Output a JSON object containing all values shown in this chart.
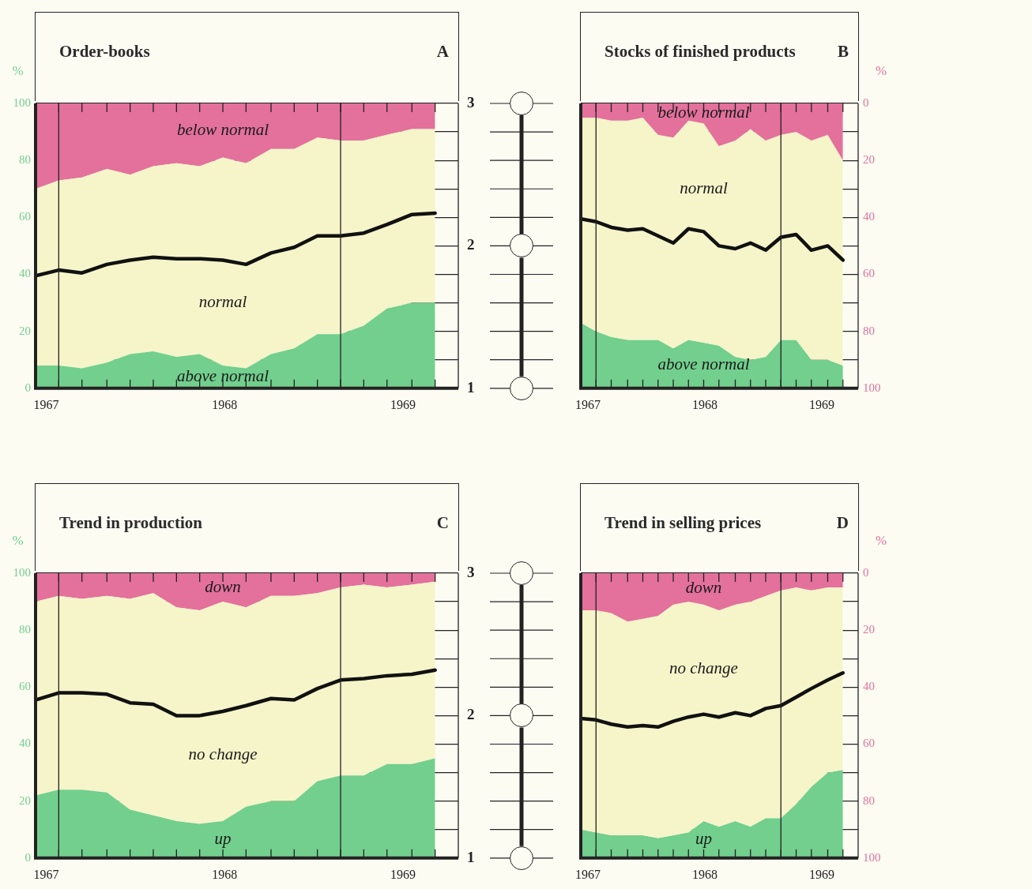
{
  "chart_data": [
    {
      "type": "area",
      "title": "Order-books",
      "annotations": [
        "A"
      ],
      "ylabel": "%",
      "stacked": true,
      "grid": "y",
      "marker": "none",
      "x": [
        1966.94,
        1967.07,
        1967.2,
        1967.34,
        1967.47,
        1967.6,
        1967.73,
        1967.86,
        1967.99,
        1968.12,
        1968.26,
        1968.39,
        1968.52,
        1968.65,
        1968.78,
        1968.91,
        1969.05,
        1969.18
      ],
      "xlim": [
        1966.94,
        1969.31
      ],
      "xticks": [
        1967,
        1968,
        1969,
        {
          "value": 1967.07,
          "label": null
        },
        {
          "value": 1967.2,
          "label": null
        },
        {
          "value": 1967.34,
          "label": null
        },
        {
          "value": 1967.47,
          "label": null
        },
        {
          "value": 1967.6,
          "label": null
        },
        {
          "value": 1967.73,
          "label": null
        },
        {
          "value": 1967.86,
          "label": null
        },
        {
          "value": 1967.99,
          "label": null
        },
        {
          "value": 1968.12,
          "label": null
        },
        {
          "value": 1968.26,
          "label": null
        },
        {
          "value": 1968.39,
          "label": null
        },
        {
          "value": 1968.52,
          "label": null
        },
        {
          "value": 1968.65,
          "label": null
        },
        {
          "value": 1968.78,
          "label": null
        },
        {
          "value": 1968.91,
          "label": null
        },
        {
          "value": 1969.05,
          "label": null
        },
        {
          "value": 1969.18,
          "label": null
        }
      ],
      "ylim": [
        0,
        100
      ],
      "yticks": [
        0,
        {
          "value": 10,
          "label": null
        },
        20,
        {
          "value": 30,
          "label": null
        },
        40,
        {
          "value": 50,
          "label": null
        },
        60,
        {
          "value": 70,
          "label": null
        },
        80,
        {
          "value": 90,
          "label": null
        },
        100
      ],
      "y2lim": [
        1,
        3
      ],
      "y2ticks": [
        1,
        {
          "value": 1.2,
          "label": null
        },
        {
          "value": 1.4,
          "label": null
        },
        {
          "value": 1.6,
          "label": null
        },
        {
          "value": 1.8,
          "label": null
        },
        2,
        {
          "value": 2.2,
          "label": null
        },
        {
          "value": 2.4,
          "label": null
        },
        {
          "value": 2.6,
          "label": null
        },
        {
          "value": 2.8,
          "label": null
        },
        3
      ],
      "ref_lines": [
        {
          "axis": "x",
          "value": 1967.07
        },
        {
          "axis": "x",
          "value": 1968.65
        }
      ],
      "series": [
        {
          "name": "above normal",
          "color": "#72cf8d",
          "values": [
            8,
            8,
            7,
            9,
            12,
            13,
            11,
            12,
            8,
            7,
            12,
            14,
            19,
            19,
            22,
            28,
            30,
            30
          ]
        },
        {
          "name": "normal",
          "color": "#f6f4c9",
          "values": [
            62,
            65,
            67,
            68,
            63,
            65,
            68,
            66,
            73,
            72,
            72,
            70,
            69,
            68,
            65,
            61,
            61,
            61
          ]
        },
        {
          "name": "below normal",
          "color": "#e3719b",
          "values": [
            30,
            27,
            26,
            23,
            25,
            22,
            21,
            22,
            19,
            21,
            16,
            16,
            12,
            13,
            13,
            11,
            9,
            9
          ]
        },
        {
          "type": "line",
          "axis": "y2",
          "color": "#111111",
          "values": [
            1.79,
            1.83,
            1.81,
            1.87,
            1.9,
            1.92,
            1.91,
            1.91,
            1.9,
            1.87,
            1.95,
            1.99,
            2.07,
            2.07,
            2.09,
            2.15,
            2.22,
            2.23
          ]
        }
      ]
    },
    {
      "type": "area",
      "title": "Stocks of finished products",
      "annotations": [
        "B"
      ],
      "ylabel": "%",
      "stacked": true,
      "grid": "y",
      "marker": "none",
      "x": [
        1966.94,
        1967.07,
        1967.2,
        1967.34,
        1967.47,
        1967.6,
        1967.73,
        1967.86,
        1967.99,
        1968.12,
        1968.26,
        1968.39,
        1968.52,
        1968.65,
        1968.78,
        1968.91,
        1969.05,
        1969.18
      ],
      "xlim": [
        1966.94,
        1969.31
      ],
      "xticks": [
        1967,
        1968,
        1969,
        {
          "value": 1967.07,
          "label": null
        },
        {
          "value": 1967.2,
          "label": null
        },
        {
          "value": 1967.34,
          "label": null
        },
        {
          "value": 1967.47,
          "label": null
        },
        {
          "value": 1967.6,
          "label": null
        },
        {
          "value": 1967.73,
          "label": null
        },
        {
          "value": 1967.86,
          "label": null
        },
        {
          "value": 1967.99,
          "label": null
        },
        {
          "value": 1968.12,
          "label": null
        },
        {
          "value": 1968.26,
          "label": null
        },
        {
          "value": 1968.39,
          "label": null
        },
        {
          "value": 1968.52,
          "label": null
        },
        {
          "value": 1968.65,
          "label": null
        },
        {
          "value": 1968.78,
          "label": null
        },
        {
          "value": 1968.91,
          "label": null
        },
        {
          "value": 1969.05,
          "label": null
        },
        {
          "value": 1969.18,
          "label": null
        }
      ],
      "ylim": [
        100,
        0
      ],
      "yticks": [
        0,
        {
          "value": 10,
          "label": null
        },
        20,
        {
          "value": 30,
          "label": null
        },
        40,
        {
          "value": 50,
          "label": null
        },
        60,
        {
          "value": 70,
          "label": null
        },
        80,
        {
          "value": 90,
          "label": null
        },
        100
      ],
      "y2lim": [
        1,
        3
      ],
      "ref_lines": [
        {
          "axis": "x",
          "value": 1967.07
        },
        {
          "axis": "x",
          "value": 1968.65
        }
      ],
      "series": [
        {
          "name": "below normal",
          "color": "#e3719b",
          "values": [
            5,
            5,
            6,
            6,
            5,
            11,
            12,
            6,
            7,
            15,
            13,
            9,
            13,
            11,
            10,
            13,
            11,
            20
          ]
        },
        {
          "name": "normal",
          "color": "#f6f4c9",
          "values": [
            72,
            75,
            76,
            77,
            78,
            72,
            74,
            77,
            77,
            70,
            76,
            81,
            76,
            72,
            73,
            77,
            79,
            72
          ]
        },
        {
          "name": "above normal",
          "color": "#72cf8d",
          "values": [
            23,
            20,
            18,
            17,
            17,
            17,
            14,
            17,
            16,
            15,
            11,
            10,
            11,
            17,
            17,
            10,
            10,
            8
          ]
        },
        {
          "type": "line",
          "axis": "y2",
          "color": "#111111",
          "values": [
            2.19,
            2.17,
            2.13,
            2.11,
            2.12,
            2.07,
            2.02,
            2.12,
            2.1,
            2.0,
            1.98,
            2.02,
            1.97,
            2.06,
            2.08,
            1.97,
            2.0,
            1.9
          ]
        }
      ]
    },
    {
      "type": "area",
      "title": "Trend in production",
      "annotations": [
        "C"
      ],
      "ylabel": "%",
      "stacked": true,
      "grid": "y",
      "marker": "none",
      "x": [
        1966.94,
        1967.07,
        1967.2,
        1967.34,
        1967.47,
        1967.6,
        1967.73,
        1967.86,
        1967.99,
        1968.12,
        1968.26,
        1968.39,
        1968.52,
        1968.65,
        1968.78,
        1968.91,
        1969.05,
        1969.18
      ],
      "xlim": [
        1966.94,
        1969.31
      ],
      "xticks": [
        1967,
        1968,
        1969,
        {
          "value": 1967.07,
          "label": null
        },
        {
          "value": 1967.2,
          "label": null
        },
        {
          "value": 1967.34,
          "label": null
        },
        {
          "value": 1967.47,
          "label": null
        },
        {
          "value": 1967.6,
          "label": null
        },
        {
          "value": 1967.73,
          "label": null
        },
        {
          "value": 1967.86,
          "label": null
        },
        {
          "value": 1967.99,
          "label": null
        },
        {
          "value": 1968.12,
          "label": null
        },
        {
          "value": 1968.26,
          "label": null
        },
        {
          "value": 1968.39,
          "label": null
        },
        {
          "value": 1968.52,
          "label": null
        },
        {
          "value": 1968.65,
          "label": null
        },
        {
          "value": 1968.78,
          "label": null
        },
        {
          "value": 1968.91,
          "label": null
        },
        {
          "value": 1969.05,
          "label": null
        },
        {
          "value": 1969.18,
          "label": null
        }
      ],
      "ylim": [
        0,
        100
      ],
      "yticks": [
        0,
        {
          "value": 10,
          "label": null
        },
        20,
        {
          "value": 30,
          "label": null
        },
        40,
        {
          "value": 50,
          "label": null
        },
        60,
        {
          "value": 70,
          "label": null
        },
        80,
        {
          "value": 90,
          "label": null
        },
        100
      ],
      "y2lim": [
        1,
        3
      ],
      "y2ticks": [
        1,
        {
          "value": 1.2,
          "label": null
        },
        {
          "value": 1.4,
          "label": null
        },
        {
          "value": 1.6,
          "label": null
        },
        {
          "value": 1.8,
          "label": null
        },
        2,
        {
          "value": 2.2,
          "label": null
        },
        {
          "value": 2.4,
          "label": null
        },
        {
          "value": 2.6,
          "label": null
        },
        {
          "value": 2.8,
          "label": null
        },
        3
      ],
      "ref_lines": [
        {
          "axis": "x",
          "value": 1967.07
        },
        {
          "axis": "x",
          "value": 1968.65
        }
      ],
      "series": [
        {
          "name": "up",
          "color": "#72cf8d",
          "values": [
            22,
            24,
            24,
            23,
            17,
            15,
            13,
            12,
            13,
            18,
            20,
            20,
            27,
            29,
            29,
            33,
            33,
            35
          ]
        },
        {
          "name": "no change",
          "color": "#f6f4c9",
          "values": [
            68,
            68,
            67,
            69,
            74,
            78,
            75,
            75,
            77,
            70,
            72,
            72,
            66,
            66,
            67,
            62,
            63,
            62
          ]
        },
        {
          "name": "down",
          "color": "#e3719b",
          "values": [
            10,
            8,
            9,
            8,
            9,
            7,
            12,
            13,
            10,
            12,
            8,
            8,
            7,
            5,
            4,
            5,
            4,
            3
          ]
        },
        {
          "type": "line",
          "axis": "y2",
          "color": "#111111",
          "values": [
            2.11,
            2.16,
            2.16,
            2.15,
            2.09,
            2.08,
            2.0,
            2.0,
            2.03,
            2.07,
            2.12,
            2.11,
            2.19,
            2.25,
            2.26,
            2.28,
            2.29,
            2.32
          ]
        }
      ]
    },
    {
      "type": "area",
      "title": "Trend in selling prices",
      "annotations": [
        "D"
      ],
      "ylabel": "%",
      "stacked": true,
      "grid": "y",
      "marker": "none",
      "x": [
        1966.94,
        1967.07,
        1967.2,
        1967.34,
        1967.47,
        1967.6,
        1967.73,
        1967.86,
        1967.99,
        1968.12,
        1968.26,
        1968.39,
        1968.52,
        1968.65,
        1968.78,
        1968.91,
        1969.05,
        1969.18
      ],
      "xlim": [
        1966.94,
        1969.31
      ],
      "xticks": [
        1967,
        1968,
        1969,
        {
          "value": 1967.07,
          "label": null
        },
        {
          "value": 1967.2,
          "label": null
        },
        {
          "value": 1967.34,
          "label": null
        },
        {
          "value": 1967.47,
          "label": null
        },
        {
          "value": 1967.6,
          "label": null
        },
        {
          "value": 1967.73,
          "label": null
        },
        {
          "value": 1967.86,
          "label": null
        },
        {
          "value": 1967.99,
          "label": null
        },
        {
          "value": 1968.12,
          "label": null
        },
        {
          "value": 1968.26,
          "label": null
        },
        {
          "value": 1968.39,
          "label": null
        },
        {
          "value": 1968.52,
          "label": null
        },
        {
          "value": 1968.65,
          "label": null
        },
        {
          "value": 1968.78,
          "label": null
        },
        {
          "value": 1968.91,
          "label": null
        },
        {
          "value": 1969.05,
          "label": null
        },
        {
          "value": 1969.18,
          "label": null
        }
      ],
      "ylim": [
        100,
        0
      ],
      "yticks": [
        0,
        {
          "value": 10,
          "label": null
        },
        20,
        {
          "value": 30,
          "label": null
        },
        40,
        {
          "value": 50,
          "label": null
        },
        60,
        {
          "value": 70,
          "label": null
        },
        80,
        {
          "value": 90,
          "label": null
        },
        100
      ],
      "y2lim": [
        1,
        3
      ],
      "ref_lines": [
        {
          "axis": "x",
          "value": 1967.07
        },
        {
          "axis": "x",
          "value": 1968.65
        }
      ],
      "series": [
        {
          "name": "down",
          "color": "#e3719b",
          "values": [
            13,
            13,
            14,
            17,
            16,
            15,
            11,
            10,
            11,
            13,
            11,
            10,
            8,
            6,
            5,
            6,
            5,
            5
          ]
        },
        {
          "name": "no change",
          "color": "#f6f4c9",
          "values": [
            77,
            78,
            78,
            75,
            76,
            78,
            81,
            81,
            76,
            76,
            76,
            79,
            78,
            80,
            76,
            69,
            65,
            64
          ]
        },
        {
          "name": "up",
          "color": "#72cf8d",
          "values": [
            10,
            9,
            8,
            8,
            8,
            7,
            8,
            9,
            13,
            11,
            13,
            11,
            14,
            14,
            19,
            25,
            30,
            31
          ]
        },
        {
          "type": "line",
          "axis": "y2",
          "color": "#111111",
          "values": [
            1.98,
            1.97,
            1.94,
            1.92,
            1.93,
            1.92,
            1.96,
            1.99,
            2.01,
            1.99,
            2.02,
            2.0,
            2.05,
            2.07,
            2.13,
            2.19,
            2.25,
            2.3
          ]
        }
      ]
    }
  ]
}
